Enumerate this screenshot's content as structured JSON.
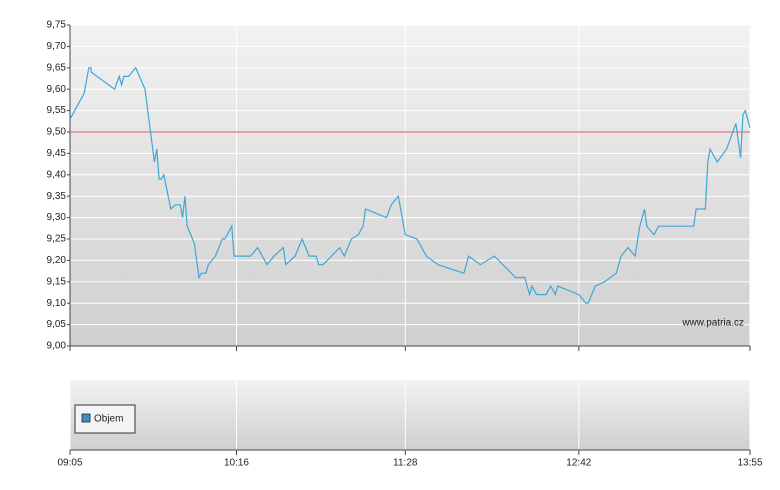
{
  "chart_data": {
    "type": "line",
    "watermark": "www.patria.cz",
    "volume_legend": "Objem",
    "volume_color": "#3d8fc4",
    "reference_line": 9.5,
    "reference_color": "#e06060",
    "grid": true,
    "xlim": [
      545,
      835
    ],
    "xticks": [
      {
        "value": 545,
        "label": "09:05"
      },
      {
        "value": 616,
        "label": "10:16"
      },
      {
        "value": 688,
        "label": "11:28"
      },
      {
        "value": 762,
        "label": "12:42"
      },
      {
        "value": 835,
        "label": "13:55"
      }
    ],
    "ylim": [
      9.0,
      9.75
    ],
    "yticks": [
      {
        "value": 9.0,
        "label": "9,00"
      },
      {
        "value": 9.05,
        "label": "9,05"
      },
      {
        "value": 9.1,
        "label": "9,10"
      },
      {
        "value": 9.15,
        "label": "9,15"
      },
      {
        "value": 9.2,
        "label": "9,20"
      },
      {
        "value": 9.25,
        "label": "9,25"
      },
      {
        "value": 9.3,
        "label": "9,30"
      },
      {
        "value": 9.35,
        "label": "9,35"
      },
      {
        "value": 9.4,
        "label": "9,40"
      },
      {
        "value": 9.45,
        "label": "9,45"
      },
      {
        "value": 9.5,
        "label": "9,50"
      },
      {
        "value": 9.55,
        "label": "9,55"
      },
      {
        "value": 9.6,
        "label": "9,60"
      },
      {
        "value": 9.65,
        "label": "9,65"
      },
      {
        "value": 9.7,
        "label": "9,70"
      },
      {
        "value": 9.75,
        "label": "9,75"
      }
    ],
    "x": [
      545,
      548,
      551,
      553,
      554,
      554,
      564,
      566,
      567,
      568,
      570,
      573,
      577,
      581,
      582,
      583,
      584,
      585,
      588,
      590,
      592,
      593,
      594,
      595,
      598,
      600,
      601,
      603,
      604,
      607,
      610,
      611,
      614,
      615,
      622,
      625,
      629,
      632,
      636,
      637,
      641,
      644,
      647,
      650,
      651,
      653,
      660,
      662,
      665,
      668,
      670,
      671,
      680,
      682,
      685,
      688,
      693,
      697,
      702,
      713,
      715,
      720,
      726,
      735,
      739,
      740,
      741,
      742,
      744,
      748,
      750,
      752,
      753,
      762,
      765,
      766,
      769,
      773,
      778,
      780,
      783,
      786,
      788,
      790,
      791,
      794,
      796,
      811,
      812,
      816,
      817,
      818,
      821,
      825,
      829,
      831,
      832,
      833,
      835
    ],
    "series": [
      {
        "color": "#3fa7d6",
        "values": [
          9.53,
          9.56,
          9.59,
          9.65,
          9.65,
          9.64,
          9.6,
          9.63,
          9.61,
          9.63,
          9.63,
          9.65,
          9.6,
          9.43,
          9.46,
          9.39,
          9.39,
          9.4,
          9.32,
          9.33,
          9.33,
          9.3,
          9.35,
          9.28,
          9.24,
          9.16,
          9.17,
          9.17,
          9.19,
          9.21,
          9.25,
          9.25,
          9.28,
          9.21,
          9.21,
          9.23,
          9.19,
          9.21,
          9.23,
          9.19,
          9.21,
          9.25,
          9.21,
          9.21,
          9.19,
          9.19,
          9.23,
          9.21,
          9.25,
          9.26,
          9.28,
          9.32,
          9.3,
          9.33,
          9.35,
          9.26,
          9.25,
          9.21,
          9.19,
          9.17,
          9.21,
          9.19,
          9.21,
          9.16,
          9.16,
          9.14,
          9.12,
          9.14,
          9.12,
          9.12,
          9.14,
          9.12,
          9.14,
          9.12,
          9.1,
          9.1,
          9.14,
          9.15,
          9.17,
          9.21,
          9.23,
          9.21,
          9.28,
          9.32,
          9.28,
          9.26,
          9.28,
          9.28,
          9.32,
          9.32,
          9.43,
          9.46,
          9.43,
          9.46,
          9.52,
          9.44,
          9.54,
          9.55,
          9.51
        ]
      }
    ]
  }
}
